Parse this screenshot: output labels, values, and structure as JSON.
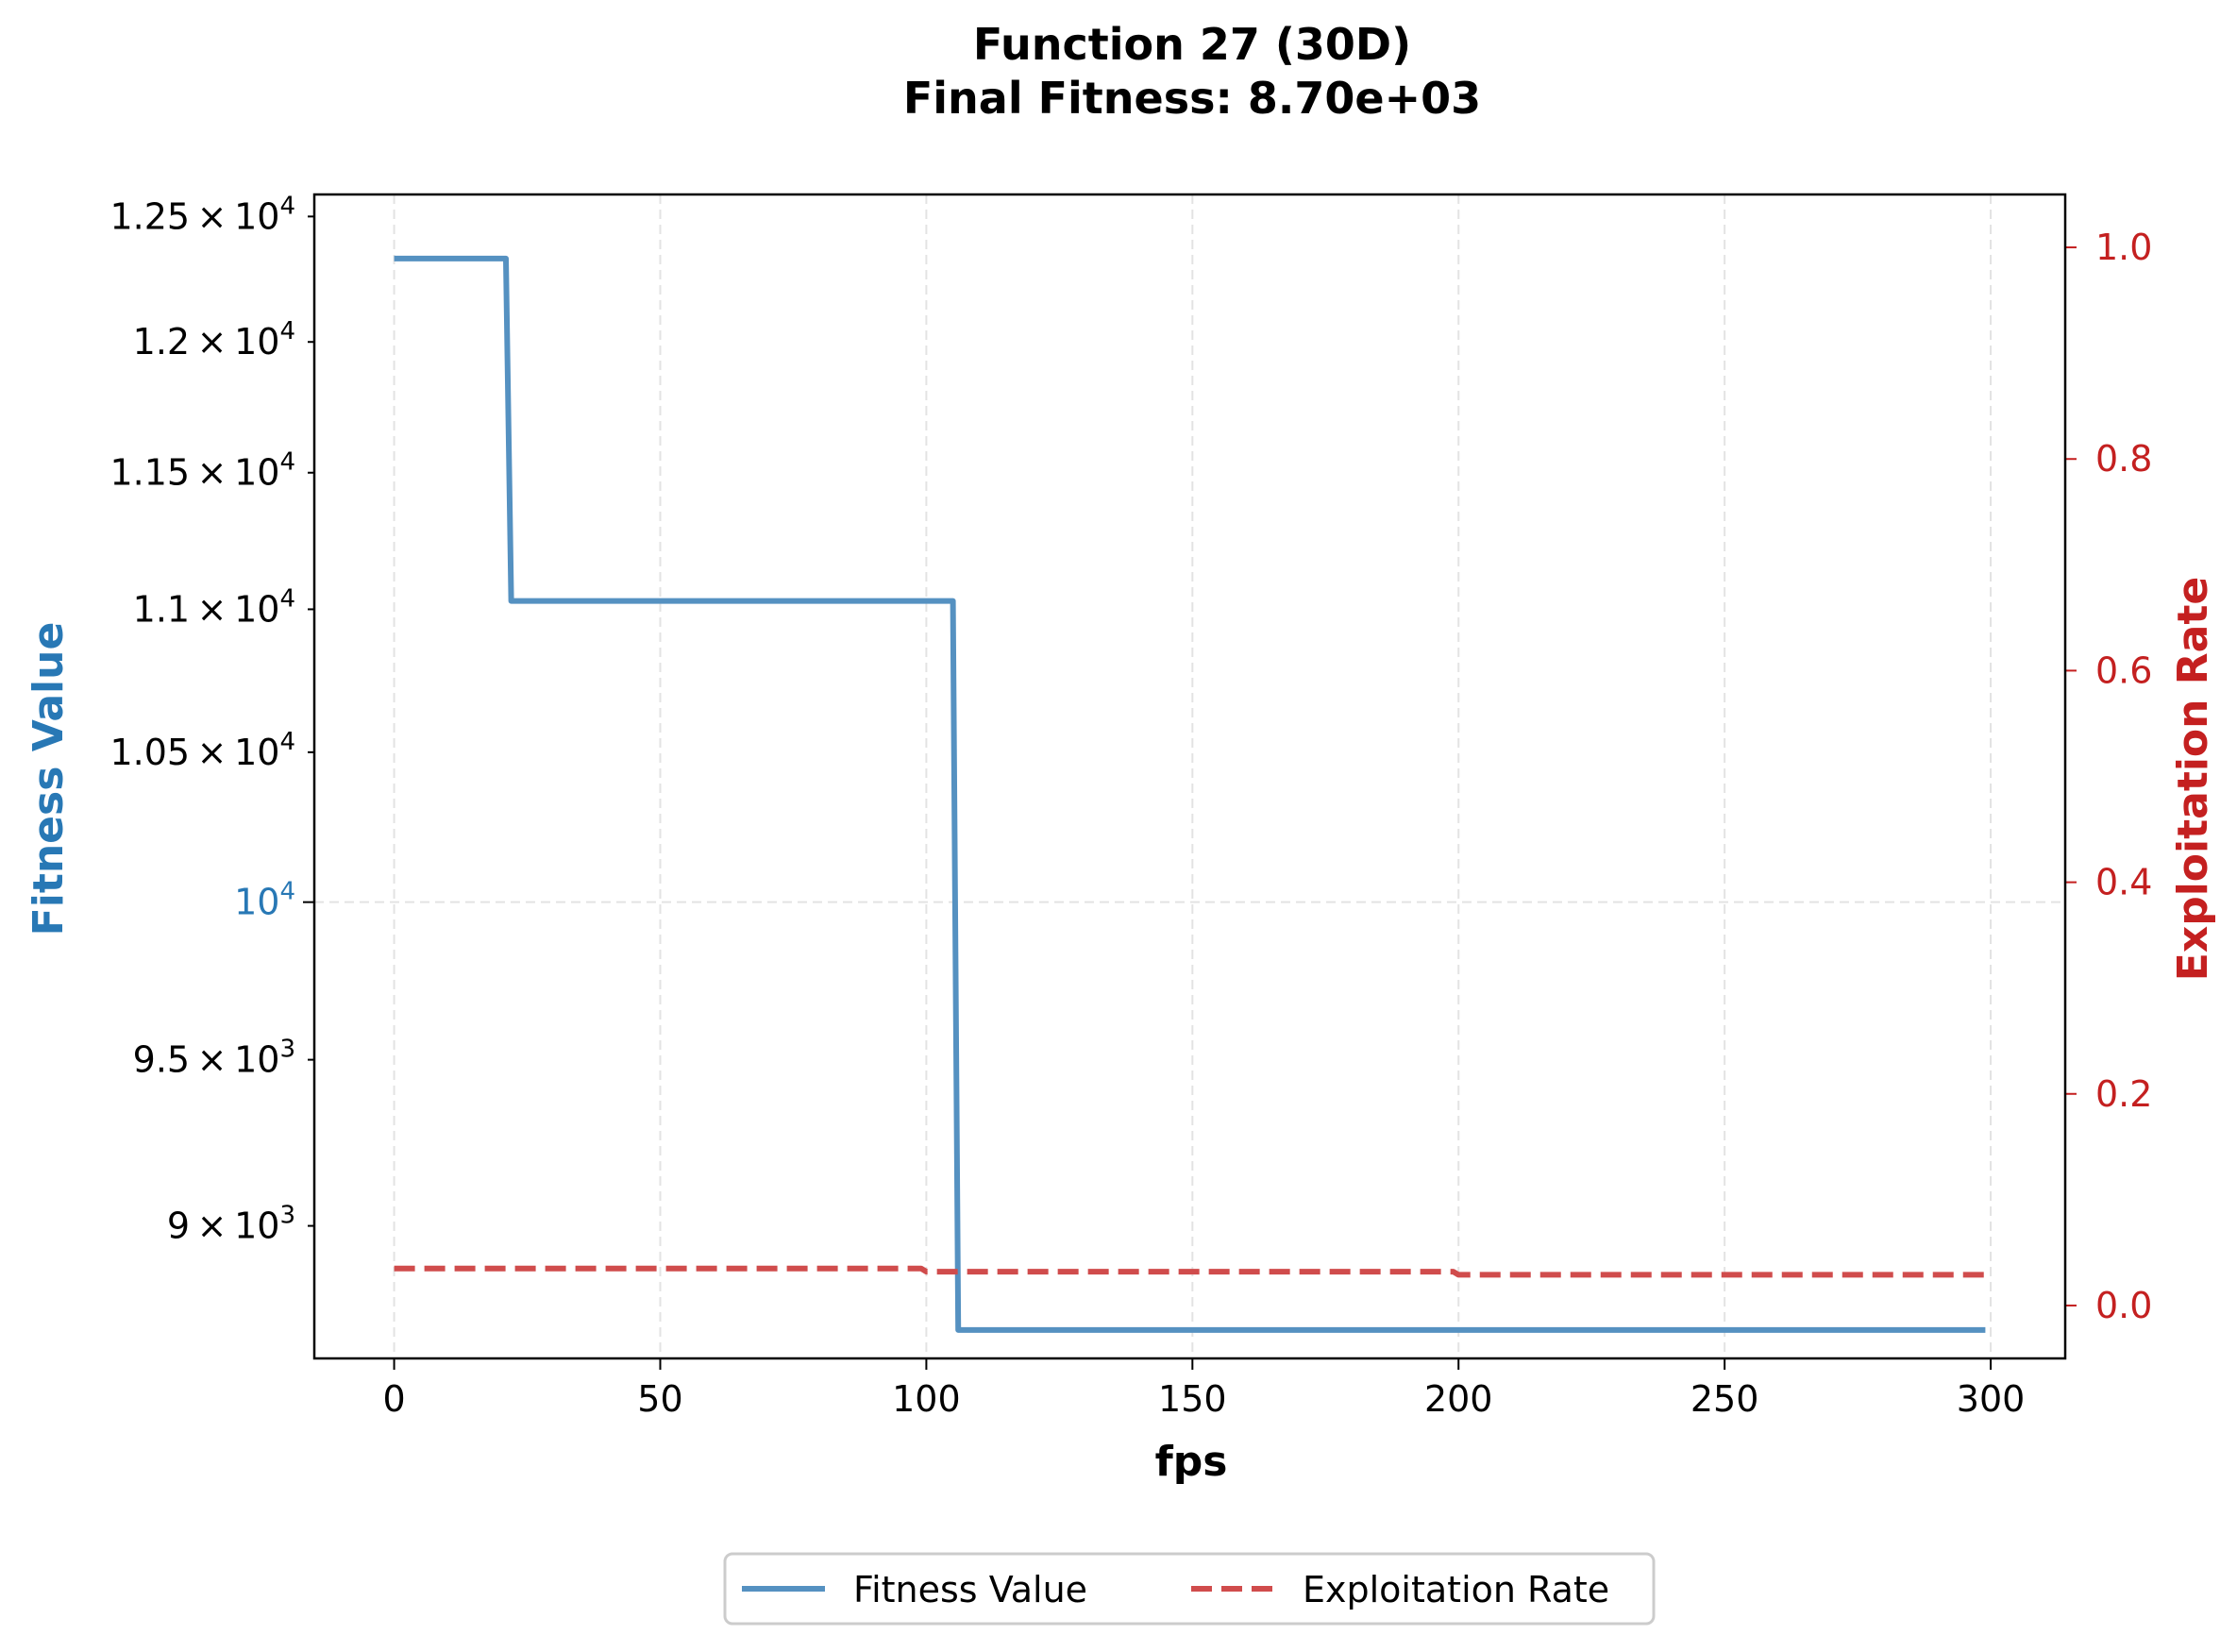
{
  "chart_data": {
    "type": "line",
    "title": "Function 27 (30D)",
    "subtitle": "Final Fitness: 8.70e+03",
    "xlabel": "fps",
    "ylabel_left": "Fitness Value",
    "ylabel_right": "Exploitation Rate",
    "xlim": [
      -15,
      314
    ],
    "x_ticks": [
      0,
      50,
      100,
      150,
      200,
      250,
      300
    ],
    "ylim_left": [
      8620,
      12590
    ],
    "y_left_scale": "log",
    "y_left_ticks": [
      {
        "value": 12500,
        "mantissa": "1.25",
        "exp": "4"
      },
      {
        "value": 12000,
        "mantissa": "1.2",
        "exp": "4"
      },
      {
        "value": 11500,
        "mantissa": "1.15",
        "exp": "4"
      },
      {
        "value": 11000,
        "mantissa": "1.1",
        "exp": "4"
      },
      {
        "value": 10500,
        "mantissa": "1.05",
        "exp": "4"
      },
      {
        "value": 10000,
        "mantissa": "",
        "exp": "4",
        "major": true
      },
      {
        "value": 9500,
        "mantissa": "9.5",
        "exp": "3"
      },
      {
        "value": 9000,
        "mantissa": "9",
        "exp": "3"
      }
    ],
    "ylim_right": [
      -0.05,
      1.05
    ],
    "y_right_ticks": [
      "0.0",
      "0.2",
      "0.4",
      "0.6",
      "0.8",
      "1.0"
    ],
    "grid": true,
    "legend_position": "bottom-center",
    "series": [
      {
        "name": "Fitness Value",
        "axis": "left",
        "color": "#5591c1",
        "style": "solid",
        "x": [
          0,
          21,
          22,
          105,
          106,
          299
        ],
        "values": [
          12330,
          12330,
          11030,
          11030,
          8700,
          8700
        ]
      },
      {
        "name": "Exploitation Rate",
        "axis": "right",
        "color": "#d04c4c",
        "style": "dashed",
        "x": [
          0,
          99,
          100,
          199,
          200,
          299
        ],
        "values": [
          0.035,
          0.035,
          0.032,
          0.032,
          0.029,
          0.029
        ]
      }
    ],
    "colors": {
      "left_axis_label": "#2878b5",
      "right_axis": "#c42020"
    }
  }
}
